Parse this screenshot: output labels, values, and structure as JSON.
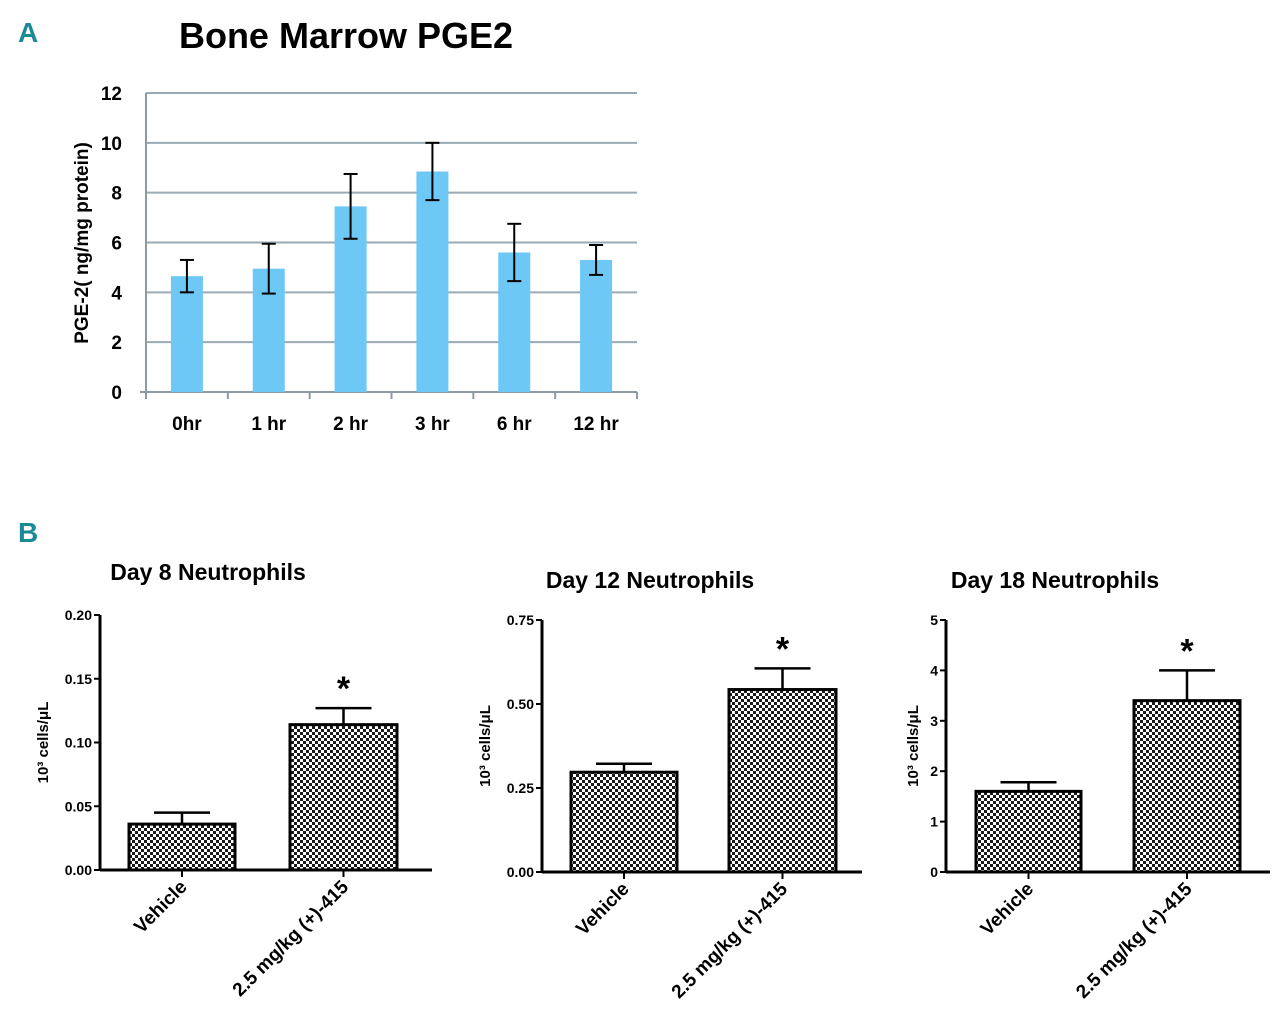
{
  "colors": {
    "panel_letter": "#1a8a94",
    "bar_a": "#6ec8f5",
    "gridline": "#9aaab4"
  },
  "chart_data": [
    {
      "panel": "A",
      "type": "bar",
      "title": "Bone Marrow PGE2",
      "ylabel": "PGE-2( ng/mg protein)",
      "xlabel": "",
      "categories": [
        "0hr",
        "1 hr",
        "2 hr",
        "3 hr",
        "6 hr",
        "12 hr"
      ],
      "values": [
        4.65,
        4.95,
        7.45,
        8.85,
        5.6,
        5.3
      ],
      "errors": [
        0.65,
        1.0,
        1.3,
        1.15,
        1.15,
        0.6
      ],
      "ylim": [
        0,
        12
      ],
      "yticks": [
        "0",
        "2",
        "4",
        "6",
        "8",
        "10",
        "12"
      ],
      "grid": true
    },
    {
      "panel": "B",
      "type": "bar",
      "title": "Day 8 Neutrophils",
      "ylabel": "10³ cells/μL",
      "categories": [
        "Vehicle",
        "2.5 mg/kg (+)-415"
      ],
      "values": [
        0.036,
        0.114
      ],
      "errors": [
        0.009,
        0.013
      ],
      "significance": [
        "",
        "*"
      ],
      "ylim": [
        0,
        0.2
      ],
      "yticks": [
        "0.00",
        "0.05",
        "0.10",
        "0.15",
        "0.20"
      ],
      "grid": false
    },
    {
      "type": "bar",
      "title": "Day 12 Neutrophils",
      "ylabel": "10³ cells/μL",
      "categories": [
        "Vehicle",
        "2.5 mg/kg (+)-415"
      ],
      "values": [
        0.297,
        0.543
      ],
      "errors": [
        0.025,
        0.063
      ],
      "significance": [
        "",
        "*"
      ],
      "ylim": [
        0,
        0.75
      ],
      "yticks": [
        "0.00",
        "0.25",
        "0.50",
        "0.75"
      ],
      "grid": false
    },
    {
      "type": "bar",
      "title": "Day 18 Neutrophils",
      "ylabel": "10³ cells/μL",
      "categories": [
        "Vehicle",
        "2.5 mg/kg (+)-415"
      ],
      "values": [
        1.6,
        3.4
      ],
      "errors": [
        0.18,
        0.6
      ],
      "significance": [
        "",
        "*"
      ],
      "ylim": [
        0,
        5
      ],
      "yticks": [
        "0",
        "1",
        "2",
        "3",
        "4",
        "5"
      ],
      "grid": false
    }
  ]
}
